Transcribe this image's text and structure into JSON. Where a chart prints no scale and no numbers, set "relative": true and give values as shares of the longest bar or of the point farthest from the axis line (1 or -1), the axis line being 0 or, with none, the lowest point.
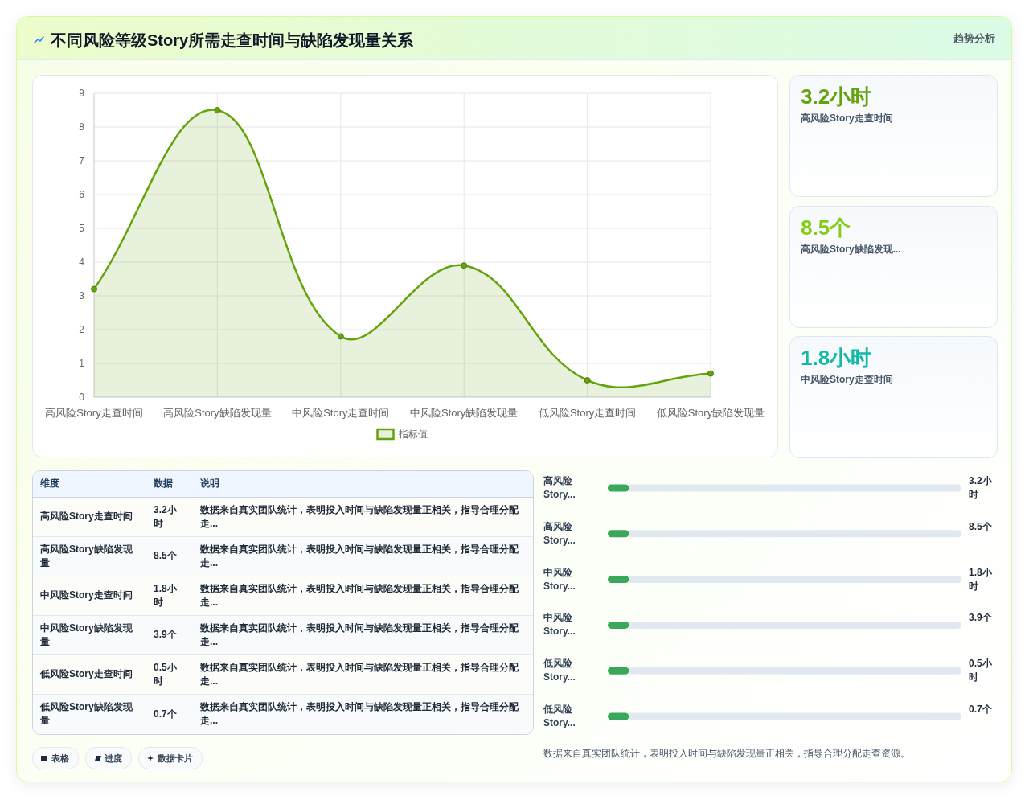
{
  "chart_data": [
    {
      "type": "other",
      "title": "不同风险等级Story所需走查时间与缺陷发现量关系",
      "subtitle": "趋势分析"
    },
    {
      "type": "area",
      "categories": [
        "高风险Story走查时间",
        "高风险Story缺陷发现量",
        "中风险Story走查时间",
        "中风险Story缺陷发现量",
        "低风险Story走查时间",
        "低风险Story缺陷发现量"
      ],
      "series": [
        {
          "name": "指标值",
          "color": "#65a30d",
          "values": [
            3.2,
            8.5,
            1.8,
            3.9,
            0.5,
            0.7
          ]
        }
      ],
      "ylim": [
        0,
        9
      ],
      "yticks": [
        0,
        1,
        2,
        3,
        4,
        5,
        6,
        7,
        8,
        9
      ],
      "grid": true,
      "legend": "bottom",
      "marker": "circle"
    },
    {
      "type": "other",
      "categories": [
        "高风险Story走查时间",
        "高风险Story缺陷发现...",
        "中风险Story走查时间"
      ],
      "value_labels": [
        "3.2小时",
        "8.5个",
        "1.8小时"
      ]
    },
    {
      "type": "other",
      "categories": [
        "维度",
        "数据",
        "说明"
      ],
      "cell_labels": [
        [
          "高风险Story走查时间",
          "3.2小时",
          "数据来自真实团队统计，表明投入时间与缺陷发现量正相关，指导合理分配走..."
        ],
        [
          "高风险Story缺陷发现量",
          "8.5个",
          "数据来自真实团队统计，表明投入时间与缺陷发现量正相关，指导合理分配走..."
        ],
        [
          "中风险Story走查时间",
          "1.8小时",
          "数据来自真实团队统计，表明投入时间与缺陷发现量正相关，指导合理分配走..."
        ],
        [
          "中风险Story缺陷发现量",
          "3.9个",
          "数据来自真实团队统计，表明投入时间与缺陷发现量正相关，指导合理分配走..."
        ],
        [
          "低风险Story走查时间",
          "0.5小时",
          "数据来自真实团队统计，表明投入时间与缺陷发现量正相关，指导合理分配走..."
        ],
        [
          "低风险Story缺陷发现量",
          "0.7个",
          "数据来自真实团队统计，表明投入时间与缺陷发现量正相关，指导合理分配走..."
        ]
      ],
      "annotations": [
        "表格",
        "进度",
        "数据卡片"
      ]
    },
    {
      "type": "bar",
      "orientation": "horizontal",
      "stacked": true,
      "relative": true,
      "categories": [
        "高风险Story...",
        "高风险Story...",
        "中风险Story...",
        "中风险Story...",
        "低风险Story...",
        "低风险Story..."
      ],
      "series": [
        {
          "color": "#3aa85a",
          "values": [
            0.06,
            0.06,
            0.06,
            0.06,
            0.06,
            0.06
          ]
        },
        {
          "color": "#e2e8f0",
          "values": [
            0.94,
            0.94,
            0.94,
            0.94,
            0.94,
            0.94
          ]
        }
      ],
      "value_labels": [
        "3.2小时",
        "8.5个",
        "1.8小时",
        "3.9个",
        "0.5小时",
        "0.7个"
      ],
      "annotations": [
        "数据来自真实团队统计，表明投入时间与缺陷发现量正相关，指导合理分配走查资源。"
      ]
    }
  ]
}
